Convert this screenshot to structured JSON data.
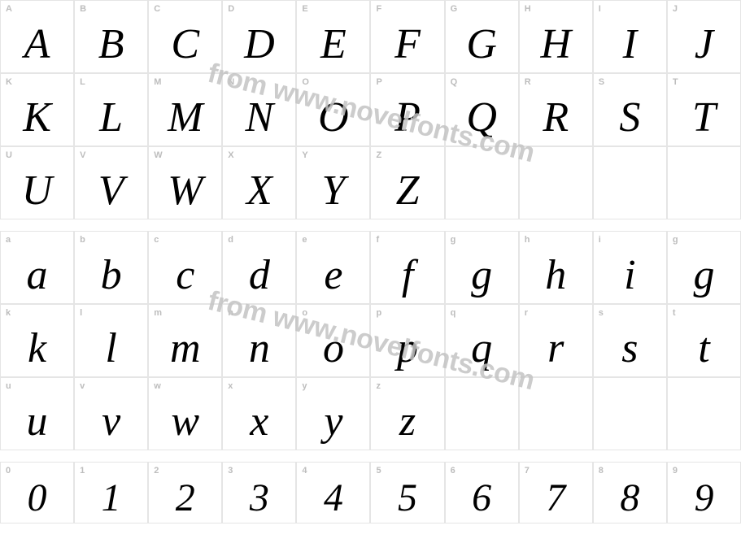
{
  "watermark_text": "from www.novelfonts.com",
  "watermark_color": "#c4c4c4",
  "label_color": "#bdbdbd",
  "glyph_color": "#000000",
  "border_color": "#e5e5e5",
  "background_color": "#ffffff",
  "label_fontsize": 11,
  "glyph_fontsize": 52,
  "glyph_style": "italic",
  "sections": [
    {
      "type": "uppercase",
      "rows": [
        [
          {
            "label": "A",
            "glyph": "A"
          },
          {
            "label": "B",
            "glyph": "B"
          },
          {
            "label": "C",
            "glyph": "C"
          },
          {
            "label": "D",
            "glyph": "D"
          },
          {
            "label": "E",
            "glyph": "E"
          },
          {
            "label": "F",
            "glyph": "F"
          },
          {
            "label": "G",
            "glyph": "G"
          },
          {
            "label": "H",
            "glyph": "H"
          },
          {
            "label": "I",
            "glyph": "I"
          },
          {
            "label": "J",
            "glyph": "J"
          }
        ],
        [
          {
            "label": "K",
            "glyph": "K"
          },
          {
            "label": "L",
            "glyph": "L"
          },
          {
            "label": "M",
            "glyph": "M"
          },
          {
            "label": "N",
            "glyph": "N"
          },
          {
            "label": "O",
            "glyph": "O"
          },
          {
            "label": "P",
            "glyph": "P"
          },
          {
            "label": "Q",
            "glyph": "Q"
          },
          {
            "label": "R",
            "glyph": "R"
          },
          {
            "label": "S",
            "glyph": "S"
          },
          {
            "label": "T",
            "glyph": "T"
          }
        ],
        [
          {
            "label": "U",
            "glyph": "U"
          },
          {
            "label": "V",
            "glyph": "V"
          },
          {
            "label": "W",
            "glyph": "W"
          },
          {
            "label": "X",
            "glyph": "X"
          },
          {
            "label": "Y",
            "glyph": "Y"
          },
          {
            "label": "Z",
            "glyph": "Z"
          },
          {
            "label": "",
            "glyph": ""
          },
          {
            "label": "",
            "glyph": ""
          },
          {
            "label": "",
            "glyph": ""
          },
          {
            "label": "",
            "glyph": ""
          }
        ]
      ]
    },
    {
      "type": "lowercase",
      "rows": [
        [
          {
            "label": "a",
            "glyph": "a"
          },
          {
            "label": "b",
            "glyph": "b"
          },
          {
            "label": "c",
            "glyph": "c"
          },
          {
            "label": "d",
            "glyph": "d"
          },
          {
            "label": "e",
            "glyph": "e"
          },
          {
            "label": "f",
            "glyph": "f"
          },
          {
            "label": "g",
            "glyph": "g"
          },
          {
            "label": "h",
            "glyph": "h"
          },
          {
            "label": "i",
            "glyph": "i"
          },
          {
            "label": "g",
            "glyph": "g"
          }
        ],
        [
          {
            "label": "k",
            "glyph": "k"
          },
          {
            "label": "l",
            "glyph": "l"
          },
          {
            "label": "m",
            "glyph": "m"
          },
          {
            "label": "n",
            "glyph": "n"
          },
          {
            "label": "o",
            "glyph": "o"
          },
          {
            "label": "p",
            "glyph": "p"
          },
          {
            "label": "q",
            "glyph": "q"
          },
          {
            "label": "r",
            "glyph": "r"
          },
          {
            "label": "s",
            "glyph": "s"
          },
          {
            "label": "t",
            "glyph": "t"
          }
        ],
        [
          {
            "label": "u",
            "glyph": "u"
          },
          {
            "label": "v",
            "glyph": "v"
          },
          {
            "label": "w",
            "glyph": "w"
          },
          {
            "label": "x",
            "glyph": "x"
          },
          {
            "label": "y",
            "glyph": "y"
          },
          {
            "label": "z",
            "glyph": "z"
          },
          {
            "label": "",
            "glyph": ""
          },
          {
            "label": "",
            "glyph": ""
          },
          {
            "label": "",
            "glyph": ""
          },
          {
            "label": "",
            "glyph": ""
          }
        ]
      ]
    },
    {
      "type": "digits",
      "rows": [
        [
          {
            "label": "0",
            "glyph": "0"
          },
          {
            "label": "1",
            "glyph": "1"
          },
          {
            "label": "2",
            "glyph": "2"
          },
          {
            "label": "3",
            "glyph": "3"
          },
          {
            "label": "4",
            "glyph": "4"
          },
          {
            "label": "5",
            "glyph": "5"
          },
          {
            "label": "6",
            "glyph": "6"
          },
          {
            "label": "7",
            "glyph": "7"
          },
          {
            "label": "8",
            "glyph": "8"
          },
          {
            "label": "9",
            "glyph": "9"
          }
        ]
      ]
    }
  ]
}
